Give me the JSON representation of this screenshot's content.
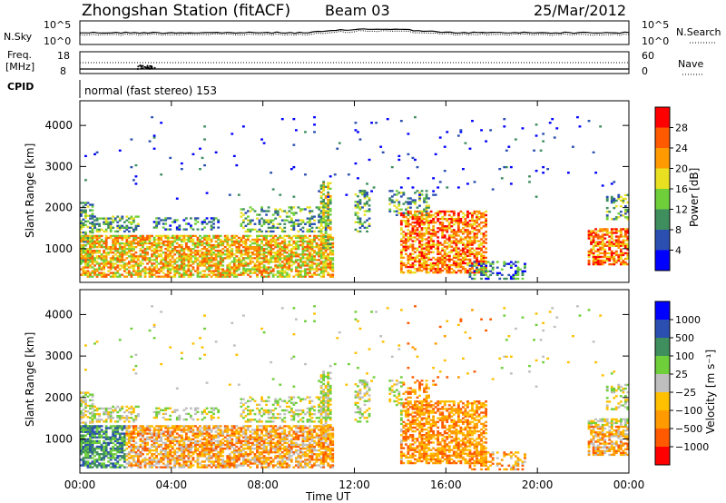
{
  "header": {
    "title": "Zhongshan Station (fitACF)",
    "beam": "Beam 03",
    "date": "25/Mar/2012"
  },
  "noise_panel": {
    "left_label": "N.Sky",
    "right_label": "N.Search",
    "left_ticks": [
      "10^5",
      "10^0"
    ],
    "right_ticks": [
      "10^5",
      "10^0"
    ]
  },
  "freq_panel": {
    "left_label_1": "Freq.",
    "left_label_2": "[MHz]",
    "right_label": "Nave",
    "left_ticks": [
      "18",
      "8"
    ],
    "right_ticks": [
      "60",
      "0"
    ]
  },
  "cpid": {
    "label": "CPID",
    "value": "normal (fast stereo) 153"
  },
  "colors": {
    "power_scale": [
      "#0000ff",
      "#2a4fb0",
      "#3e8e5e",
      "#6fcf3a",
      "#e8e020",
      "#ff9a00",
      "#ff5a00",
      "#ff0000"
    ],
    "velocity_scale": [
      "#ff0000",
      "#ff5a00",
      "#ff9a00",
      "#ffc000",
      "#bebebe",
      "#6fcf3a",
      "#3e8e5e",
      "#2a4fb0",
      "#0000ff"
    ]
  },
  "chart_data": [
    {
      "type": "heatmap",
      "name": "power",
      "ylabel": "Slant Range [km]",
      "colorbar_label": "Power [dB]",
      "colorbar_ticks": [
        "4",
        "8",
        "12",
        "16",
        "20",
        "24",
        "28"
      ],
      "x_ticks": [
        "00:00",
        "04:00",
        "08:00",
        "12:00",
        "16:00",
        "20:00",
        "00:00"
      ],
      "y_ticks": [
        "1000",
        "2000",
        "3000",
        "4000"
      ],
      "xlim": [
        0,
        24
      ],
      "ylim": [
        180,
        4600
      ]
    },
    {
      "type": "heatmap",
      "name": "velocity",
      "ylabel": "Slant Range [km]",
      "xlabel": "Time UT",
      "colorbar_label": "Velocity [m s⁻¹]",
      "colorbar_ticks": [
        "1000",
        "500",
        "100",
        "25",
        "−25",
        "−100",
        "−500",
        "−1000"
      ],
      "x_ticks": [
        "00:00",
        "04:00",
        "08:00",
        "12:00",
        "16:00",
        "20:00",
        "00:00"
      ],
      "y_ticks": [
        "1000",
        "2000",
        "3000",
        "4000"
      ],
      "xlim": [
        0,
        24
      ],
      "ylim": [
        180,
        4600
      ]
    }
  ]
}
